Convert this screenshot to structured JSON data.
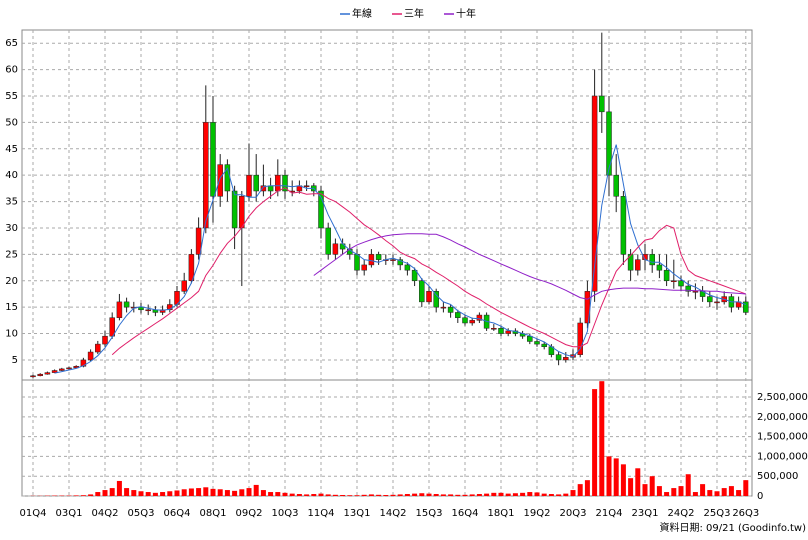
{
  "chart_data": {
    "type": "candlestick",
    "categories": [
      "01Q4",
      null,
      null,
      null,
      null,
      "03Q1",
      null,
      null,
      null,
      null,
      "04Q2",
      null,
      null,
      null,
      null,
      "05Q3",
      null,
      null,
      null,
      null,
      "06Q4",
      null,
      null,
      null,
      null,
      "08Q1",
      null,
      null,
      null,
      null,
      "09Q2",
      null,
      null,
      null,
      null,
      "10Q3",
      null,
      null,
      null,
      null,
      "11Q4",
      null,
      null,
      null,
      null,
      "13Q1",
      null,
      null,
      null,
      null,
      "14Q2",
      null,
      null,
      null,
      null,
      "15Q3",
      null,
      null,
      null,
      null,
      "16Q4",
      null,
      null,
      null,
      null,
      "18Q1",
      null,
      null,
      null,
      null,
      "19Q2",
      null,
      null,
      null,
      null,
      "20Q3",
      null,
      null,
      null,
      null,
      "21Q4",
      null,
      null,
      null,
      null,
      "23Q1",
      null,
      null,
      null,
      null,
      "24Q2",
      null,
      null,
      null,
      null,
      "25Q3",
      null,
      null,
      null,
      "26Q3"
    ],
    "open": [
      1.8,
      2,
      2.3,
      2.6,
      3,
      3.3,
      3.5,
      3.8,
      5,
      6.5,
      8,
      9.5,
      13,
      16,
      15,
      15,
      14.5,
      14.5,
      14,
      14.5,
      15.5,
      18,
      20,
      25,
      30,
      50,
      36,
      42,
      37,
      30,
      36,
      40,
      37,
      38,
      37,
      40,
      37,
      37,
      38,
      38,
      37,
      30,
      25,
      27,
      26,
      25,
      22,
      23,
      25,
      24,
      24,
      24,
      23,
      22,
      20,
      16,
      18,
      15,
      15,
      14,
      13,
      12,
      12.5,
      13.5,
      11,
      11,
      10,
      10.5,
      10,
      9.5,
      8.5,
      8,
      7.5,
      6,
      5,
      5.5,
      6,
      12,
      18,
      55,
      52,
      40,
      36,
      25,
      22,
      24,
      25,
      23,
      22,
      20,
      20,
      19,
      18,
      18,
      17,
      16,
      16,
      17,
      15,
      16
    ],
    "high": [
      2.2,
      2.5,
      2.8,
      3.2,
      3.5,
      3.7,
      4,
      5.4,
      7,
      8.6,
      10.5,
      14,
      17.5,
      16.8,
      16,
      15.8,
      15.5,
      15.2,
      15.3,
      16.5,
      19,
      21.5,
      26,
      32,
      57,
      55,
      44,
      43,
      38,
      37,
      46,
      44,
      42,
      39.5,
      43,
      41,
      39,
      39,
      39,
      38.5,
      38,
      31,
      28,
      28,
      27,
      26,
      24,
      26,
      25.5,
      25,
      25,
      24.5,
      23.5,
      22.5,
      20.5,
      19,
      18.5,
      16,
      15.5,
      14.5,
      13.5,
      13,
      14,
      14,
      11.8,
      11.5,
      11,
      11,
      10.5,
      10,
      9,
      8.5,
      8,
      6.5,
      6.5,
      7,
      13,
      20,
      60,
      67,
      55,
      44,
      37,
      26,
      25,
      27,
      26,
      25,
      25,
      24,
      21,
      20,
      19.5,
      19,
      18,
      17,
      18,
      17.5,
      17,
      17
    ],
    "low": [
      1.6,
      1.9,
      2.2,
      2.5,
      2.9,
      3.1,
      3.4,
      3.6,
      4.8,
      6.1,
      7.5,
      9,
      12.5,
      14,
      14,
      13.8,
      13.5,
      13.3,
      13.5,
      14,
      15,
      17.5,
      19.5,
      24,
      29,
      31,
      34,
      35,
      26,
      19,
      35,
      35,
      36,
      35.5,
      36,
      35.5,
      36,
      36.5,
      37,
      36,
      28,
      24,
      24,
      25,
      24,
      21,
      21,
      22.5,
      23,
      23,
      23,
      22,
      21,
      19,
      15,
      15.5,
      14,
      14,
      13,
      12,
      11.5,
      11.5,
      12,
      10.5,
      10.5,
      9.5,
      9.5,
      9.5,
      9,
      8,
      7.5,
      7,
      5.5,
      4,
      4.5,
      5,
      5.5,
      11,
      16,
      48,
      36,
      33,
      23,
      20,
      21,
      22,
      21.5,
      20.5,
      19,
      18.5,
      18,
      17,
      16.5,
      16,
      15,
      14.5,
      15.5,
      14,
      14.5,
      13.5
    ],
    "close": [
      2,
      2.3,
      2.6,
      3,
      3.3,
      3.5,
      3.8,
      5,
      6.5,
      8,
      9.5,
      13,
      16,
      15,
      15,
      14.5,
      14.5,
      14,
      14.5,
      15.5,
      18,
      20,
      25,
      30,
      50,
      36,
      42,
      37,
      30,
      36,
      40,
      37,
      38,
      37,
      40,
      37,
      37,
      38,
      38,
      37,
      30,
      25,
      27,
      26,
      25,
      22,
      23,
      25,
      24,
      24,
      24,
      23,
      22,
      20,
      16,
      18,
      15,
      15,
      14,
      13,
      12,
      12.5,
      13.5,
      11,
      11,
      10,
      10.5,
      10,
      9.5,
      8.5,
      8,
      7.5,
      6,
      5,
      5.5,
      6,
      12,
      18,
      55,
      52,
      40,
      36,
      25,
      22,
      24,
      25,
      23,
      22,
      20,
      20,
      19,
      18,
      18,
      17,
      16,
      16,
      17,
      15,
      16,
      14
    ],
    "up_color": "#ff0000",
    "down_color": "#00c000",
    "series": [
      {
        "name": "年線",
        "color": "#2f6fd0",
        "values": [
          null,
          null,
          null,
          2.5,
          2.8,
          3.1,
          3.4,
          3.9,
          4.7,
          5.8,
          7.3,
          9.3,
          11.6,
          13.4,
          14.8,
          15.1,
          14.8,
          14.5,
          14.4,
          14.6,
          15.5,
          17,
          19.6,
          23.3,
          31.3,
          35.3,
          39.5,
          41.3,
          36.3,
          36.3,
          35.8,
          35.8,
          37.8,
          38,
          38,
          38,
          37.8,
          38,
          37.5,
          37.5,
          35.8,
          32.5,
          29.8,
          27,
          25.8,
          25,
          24,
          23.8,
          23.5,
          24,
          24.3,
          23.8,
          23.3,
          22.3,
          20.3,
          19,
          17.3,
          16,
          15.5,
          14.3,
          13.5,
          12.9,
          12.8,
          12.3,
          12,
          11.4,
          10.6,
          10.4,
          10,
          9.6,
          9,
          8.4,
          7.5,
          6.6,
          6,
          5.6,
          7.1,
          10.4,
          22.8,
          34.3,
          41.3,
          45.8,
          38.3,
          30.8,
          26.8,
          24,
          23.5,
          23.5,
          22.5,
          21.3,
          20.3,
          19.3,
          18.8,
          18,
          17.3,
          16.8,
          16.5,
          16,
          16,
          15.5
        ]
      },
      {
        "name": "三年",
        "color": "#e0206a",
        "values": [
          null,
          null,
          null,
          null,
          null,
          null,
          null,
          null,
          null,
          null,
          null,
          6,
          7.2,
          8.2,
          9.2,
          10.1,
          11,
          11.9,
          12.8,
          13.8,
          14.8,
          15.8,
          16.8,
          18,
          21,
          22.9,
          25.2,
          27.1,
          28.4,
          30.1,
          32.2,
          33.8,
          35,
          36,
          37,
          37.6,
          36.6,
          36.8,
          36.4,
          36.5,
          36.5,
          35.6,
          35,
          34,
          33,
          31.8,
          30.6,
          29.7,
          28.7,
          27.6,
          26.6,
          25.4,
          24.7,
          24.2,
          23.2,
          22.5,
          21.6,
          20.8,
          19.9,
          19,
          18,
          17.2,
          16.5,
          15.6,
          14.8,
          14,
          13.3,
          12.6,
          11.9,
          11.2,
          10.6,
          10,
          9.3,
          8.6,
          7.9,
          7.5,
          7.5,
          8.2,
          11.8,
          15.4,
          18.6,
          21.8,
          23.4,
          24.8,
          26.3,
          27.7,
          28,
          29.5,
          30.5,
          30,
          25,
          22,
          21,
          20.5,
          20,
          19.5,
          19,
          18.5,
          18,
          17.5
        ]
      },
      {
        "name": "十年",
        "color": "#9020c8",
        "values": [
          null,
          null,
          null,
          null,
          null,
          null,
          null,
          null,
          null,
          null,
          null,
          null,
          null,
          null,
          null,
          null,
          null,
          null,
          null,
          null,
          null,
          null,
          null,
          null,
          null,
          null,
          null,
          null,
          null,
          null,
          null,
          null,
          null,
          null,
          null,
          null,
          null,
          null,
          null,
          21,
          22,
          23,
          24,
          25,
          26,
          26.8,
          27.3,
          27.8,
          28.2,
          28.5,
          28.7,
          28.8,
          28.9,
          28.9,
          28.9,
          28.8,
          28.8,
          28.3,
          27.7,
          27,
          26.4,
          25.7,
          25,
          24.4,
          23.8,
          23.2,
          22.6,
          22,
          21.4,
          20.8,
          20.3,
          19.9,
          19.4,
          18.8,
          18.2,
          17.5,
          16.8,
          16.5,
          17.3,
          18,
          18.3,
          18.5,
          18.6,
          18.6,
          18.6,
          18.5,
          18.5,
          18.4,
          18.3,
          18.2,
          18.2,
          18.2,
          18.1,
          18.1,
          18,
          18,
          17.8,
          17.7,
          17.6,
          17.5
        ]
      }
    ],
    "ylim": [
      1.2,
      67.5
    ],
    "yticks": [
      5,
      10,
      15,
      20,
      25,
      30,
      35,
      40,
      45,
      50,
      55,
      60,
      65
    ],
    "volume": {
      "color": "#ff0000",
      "values": [
        5000,
        5000,
        8000,
        10000,
        10000,
        10000,
        15000,
        20000,
        40000,
        100000,
        150000,
        200000,
        380000,
        200000,
        150000,
        120000,
        100000,
        80000,
        100000,
        120000,
        140000,
        170000,
        190000,
        200000,
        220000,
        180000,
        170000,
        150000,
        130000,
        170000,
        200000,
        280000,
        150000,
        100000,
        100000,
        80000,
        60000,
        50000,
        40000,
        50000,
        60000,
        40000,
        30000,
        25000,
        20000,
        20000,
        30000,
        40000,
        30000,
        25000,
        30000,
        40000,
        50000,
        60000,
        70000,
        60000,
        50000,
        40000,
        40000,
        30000,
        30000,
        40000,
        50000,
        60000,
        80000,
        80000,
        60000,
        70000,
        80000,
        100000,
        90000,
        60000,
        50000,
        40000,
        60000,
        150000,
        300000,
        400000,
        2700000,
        2900000,
        1000000,
        950000,
        800000,
        450000,
        700000,
        300000,
        500000,
        250000,
        100000,
        200000,
        250000,
        550000,
        100000,
        300000,
        150000,
        120000,
        200000,
        250000,
        150000,
        400000
      ],
      "ylim": [
        0,
        2930000
      ],
      "yticks": [
        0,
        {
          "value": 500000,
          "label": "500,000"
        },
        {
          "value": 1000000,
          "label": "1,000,000"
        },
        {
          "value": 1500000,
          "label": "1,500,000"
        },
        {
          "value": 2000000,
          "label": "2,000,000"
        },
        {
          "value": 2500000,
          "label": "2,500,000"
        }
      ]
    },
    "grid": true,
    "legend": "top",
    "source": "資料日期: 09/21  (Goodinfo.tw)"
  }
}
